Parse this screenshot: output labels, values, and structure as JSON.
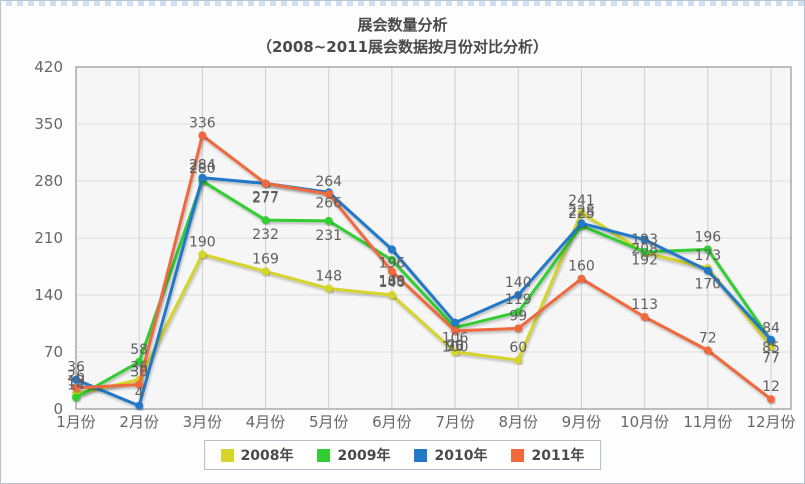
{
  "chart_data": {
    "type": "line",
    "title": "展会数量分析",
    "subtitle": "（2008~2011展会数据按月份对比分析）",
    "categories": [
      "1月份",
      "2月份",
      "3月份",
      "4月份",
      "5月份",
      "6月份",
      "7月份",
      "8月份",
      "9月份",
      "10月份",
      "11月份",
      "12月份"
    ],
    "y_ticks": [
      0,
      70,
      140,
      210,
      280,
      350,
      420
    ],
    "ylim": [
      0,
      420
    ],
    "grid": true,
    "legend_position": "bottom",
    "series": [
      {
        "name": "2008年",
        "color": "#d4d429",
        "values": [
          19,
          36,
          190,
          169,
          148,
          140,
          70,
          60,
          241,
          192,
          173,
          77
        ]
      },
      {
        "name": "2009年",
        "color": "#32cd32",
        "values": [
          14,
          58,
          280,
          232,
          231,
          183,
          100,
          119,
          225,
          193,
          196,
          84
        ]
      },
      {
        "name": "2010年",
        "color": "#2478c8",
        "values": [
          36,
          4,
          284,
          277,
          266,
          196,
          106,
          140,
          228,
          208,
          170,
          85
        ]
      },
      {
        "name": "2011年",
        "color": "#f0683c",
        "values": [
          26,
          30,
          336,
          277,
          264,
          169,
          96,
          99,
          160,
          113,
          72,
          12
        ]
      }
    ]
  }
}
